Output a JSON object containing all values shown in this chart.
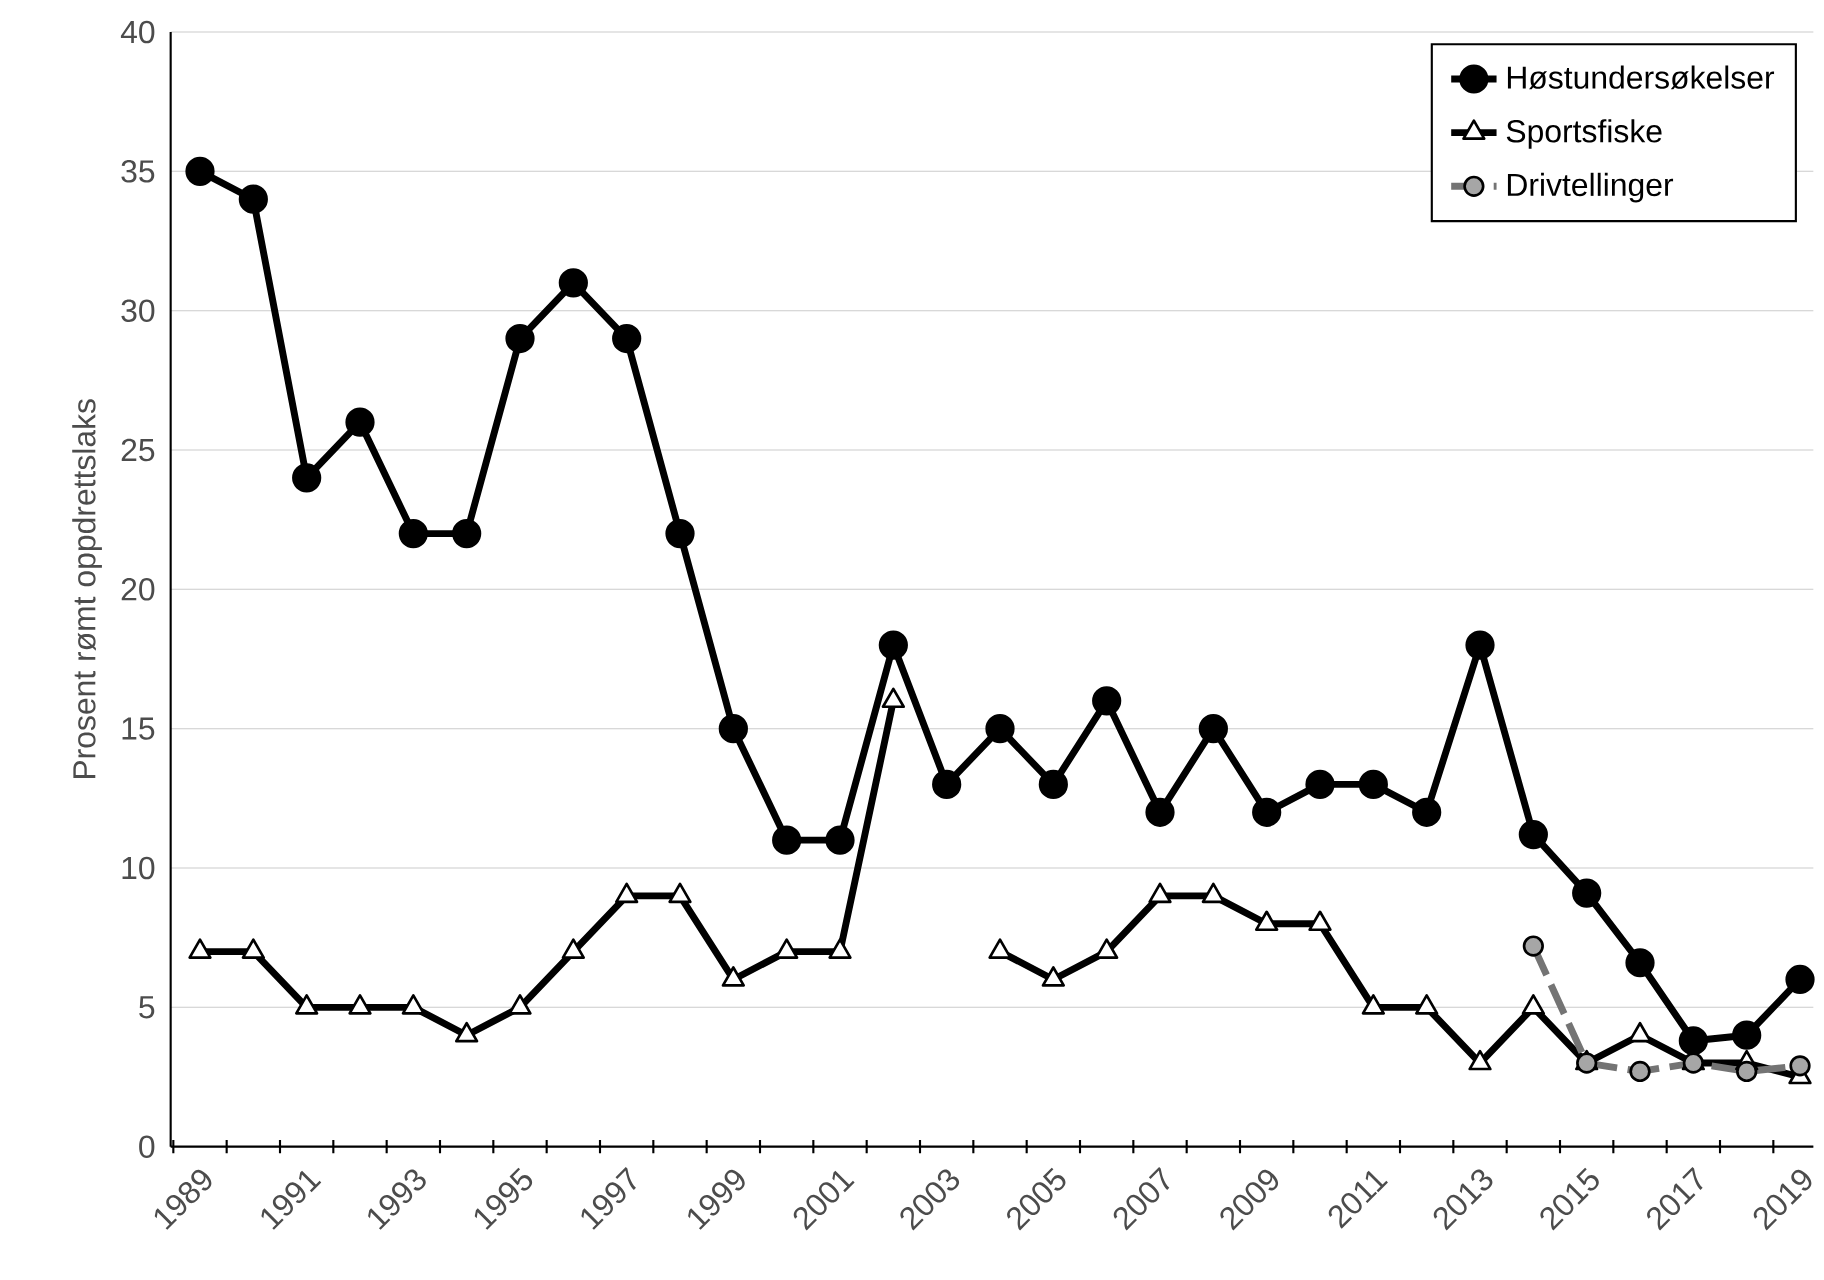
{
  "chart_data": {
    "type": "line",
    "ylabel": "Prosent rømt oppdrettslaks",
    "categories": [
      "1989",
      null,
      "1991",
      null,
      "1993",
      null,
      "1995",
      null,
      "1997",
      null,
      "1999",
      null,
      "2001",
      null,
      "2003",
      null,
      "2005",
      null,
      "2007",
      null,
      "2009",
      null,
      "2011",
      null,
      "2013",
      null,
      "2015",
      null,
      "2017",
      null,
      "2019"
    ],
    "ylim": [
      0,
      40
    ],
    "yticks": [
      0,
      5,
      10,
      15,
      20,
      25,
      30,
      35,
      40
    ],
    "grid": "y",
    "legend": "top right",
    "series": [
      {
        "name": "Høstundersøkelser",
        "color": "#000000",
        "marker": "circle",
        "line_style": "solid",
        "values": [
          35,
          34,
          24,
          26,
          22,
          22,
          29,
          31,
          29,
          22,
          15,
          11,
          11,
          18,
          13,
          15,
          13,
          16,
          12,
          15,
          12,
          13,
          13,
          12,
          18,
          11.2,
          9.1,
          6.6,
          3.8,
          4.0,
          6.0
        ]
      },
      {
        "name": "Sportsfiske",
        "color": "#000000",
        "marker": "triangle",
        "line_style": "solid",
        "values": [
          7,
          7,
          5,
          5,
          5,
          4,
          5,
          7,
          9,
          9,
          6,
          7,
          7,
          16,
          null,
          7,
          6,
          7,
          9,
          9,
          8,
          8,
          5,
          5,
          3,
          5,
          3,
          4,
          3,
          3,
          2.5
        ]
      },
      {
        "name": "Drivtellinger",
        "color": "#a6a6a6",
        "marker": "circle",
        "line_style": "dashed",
        "values": [
          null,
          null,
          null,
          null,
          null,
          null,
          null,
          null,
          null,
          null,
          null,
          null,
          null,
          null,
          null,
          null,
          null,
          null,
          null,
          null,
          null,
          null,
          null,
          null,
          null,
          7.2,
          3.0,
          2.7,
          3.0,
          2.7,
          2.9
        ]
      }
    ]
  }
}
